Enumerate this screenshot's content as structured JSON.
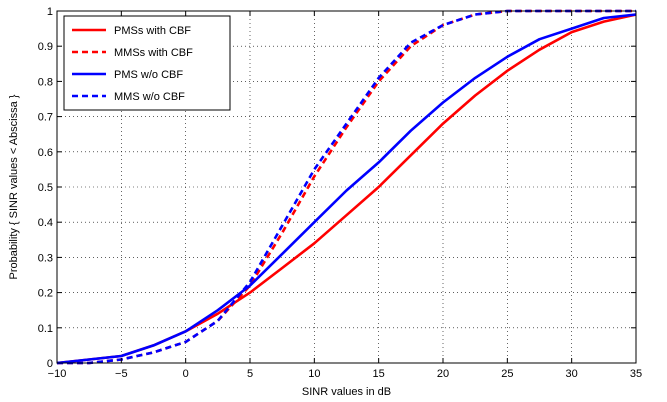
{
  "chart_data": {
    "type": "line",
    "xlabel": "SINR values in dB",
    "ylabel": "Probability { SINR values < Abscissa }",
    "xlim": [
      -10,
      35
    ],
    "ylim": [
      0,
      1
    ],
    "xticks": [
      -10,
      -5,
      0,
      5,
      10,
      15,
      20,
      25,
      30,
      35
    ],
    "yticks": [
      0,
      0.1,
      0.2,
      0.3,
      0.4,
      0.5,
      0.6,
      0.7,
      0.8,
      0.9,
      1
    ],
    "xtick_labels": [
      "−10",
      "−5",
      "0",
      "5",
      "10",
      "15",
      "20",
      "25",
      "30",
      "35"
    ],
    "ytick_labels": [
      "0",
      "0.1",
      "0.2",
      "0.3",
      "0.4",
      "0.5",
      "0.6",
      "0.7",
      "0.8",
      "0.9",
      "1"
    ],
    "grid": true,
    "legend_position": "top-left",
    "series": [
      {
        "name": "PMSs with CBF",
        "color": "#ff0000",
        "dash": "solid",
        "x": [
          -10,
          -7.5,
          -5,
          -2.5,
          0,
          2.5,
          5,
          7.5,
          10,
          12.5,
          15,
          17.5,
          20,
          22.5,
          25,
          27.5,
          30,
          32.5,
          35
        ],
        "y": [
          0.0,
          0.01,
          0.02,
          0.05,
          0.09,
          0.14,
          0.2,
          0.27,
          0.34,
          0.42,
          0.5,
          0.59,
          0.68,
          0.76,
          0.83,
          0.89,
          0.94,
          0.97,
          0.99
        ]
      },
      {
        "name": "MMSs with CBF",
        "color": "#ff0000",
        "dash": "dashed",
        "x": [
          -10,
          -7.5,
          -5,
          -2.5,
          0,
          2.5,
          5,
          7.5,
          10,
          12.5,
          15,
          17.5,
          20,
          22.5,
          25,
          27.5,
          30,
          35
        ],
        "y": [
          0.0,
          0.0,
          0.01,
          0.03,
          0.06,
          0.12,
          0.22,
          0.37,
          0.53,
          0.67,
          0.8,
          0.9,
          0.96,
          0.99,
          1.0,
          1.0,
          1.0,
          1.0
        ]
      },
      {
        "name": "PMS w/o CBF",
        "color": "#0000ff",
        "dash": "solid",
        "x": [
          -10,
          -7.5,
          -5,
          -2.5,
          0,
          2.5,
          5,
          7.5,
          10,
          12.5,
          15,
          17.5,
          20,
          22.5,
          25,
          27.5,
          30,
          32.5,
          35
        ],
        "y": [
          0.0,
          0.01,
          0.02,
          0.05,
          0.09,
          0.15,
          0.22,
          0.31,
          0.4,
          0.49,
          0.57,
          0.66,
          0.74,
          0.81,
          0.87,
          0.92,
          0.95,
          0.98,
          0.99
        ]
      },
      {
        "name": "MMS w/o CBF",
        "color": "#0000ff",
        "dash": "dashed",
        "x": [
          -10,
          -7.5,
          -5,
          -2.5,
          0,
          2.5,
          5,
          7.5,
          10,
          12.5,
          15,
          17.5,
          20,
          22.5,
          25,
          27.5,
          30,
          35
        ],
        "y": [
          0.0,
          0.0,
          0.01,
          0.03,
          0.06,
          0.12,
          0.23,
          0.39,
          0.55,
          0.68,
          0.81,
          0.91,
          0.96,
          0.99,
          1.0,
          1.0,
          1.0,
          1.0
        ]
      }
    ]
  }
}
